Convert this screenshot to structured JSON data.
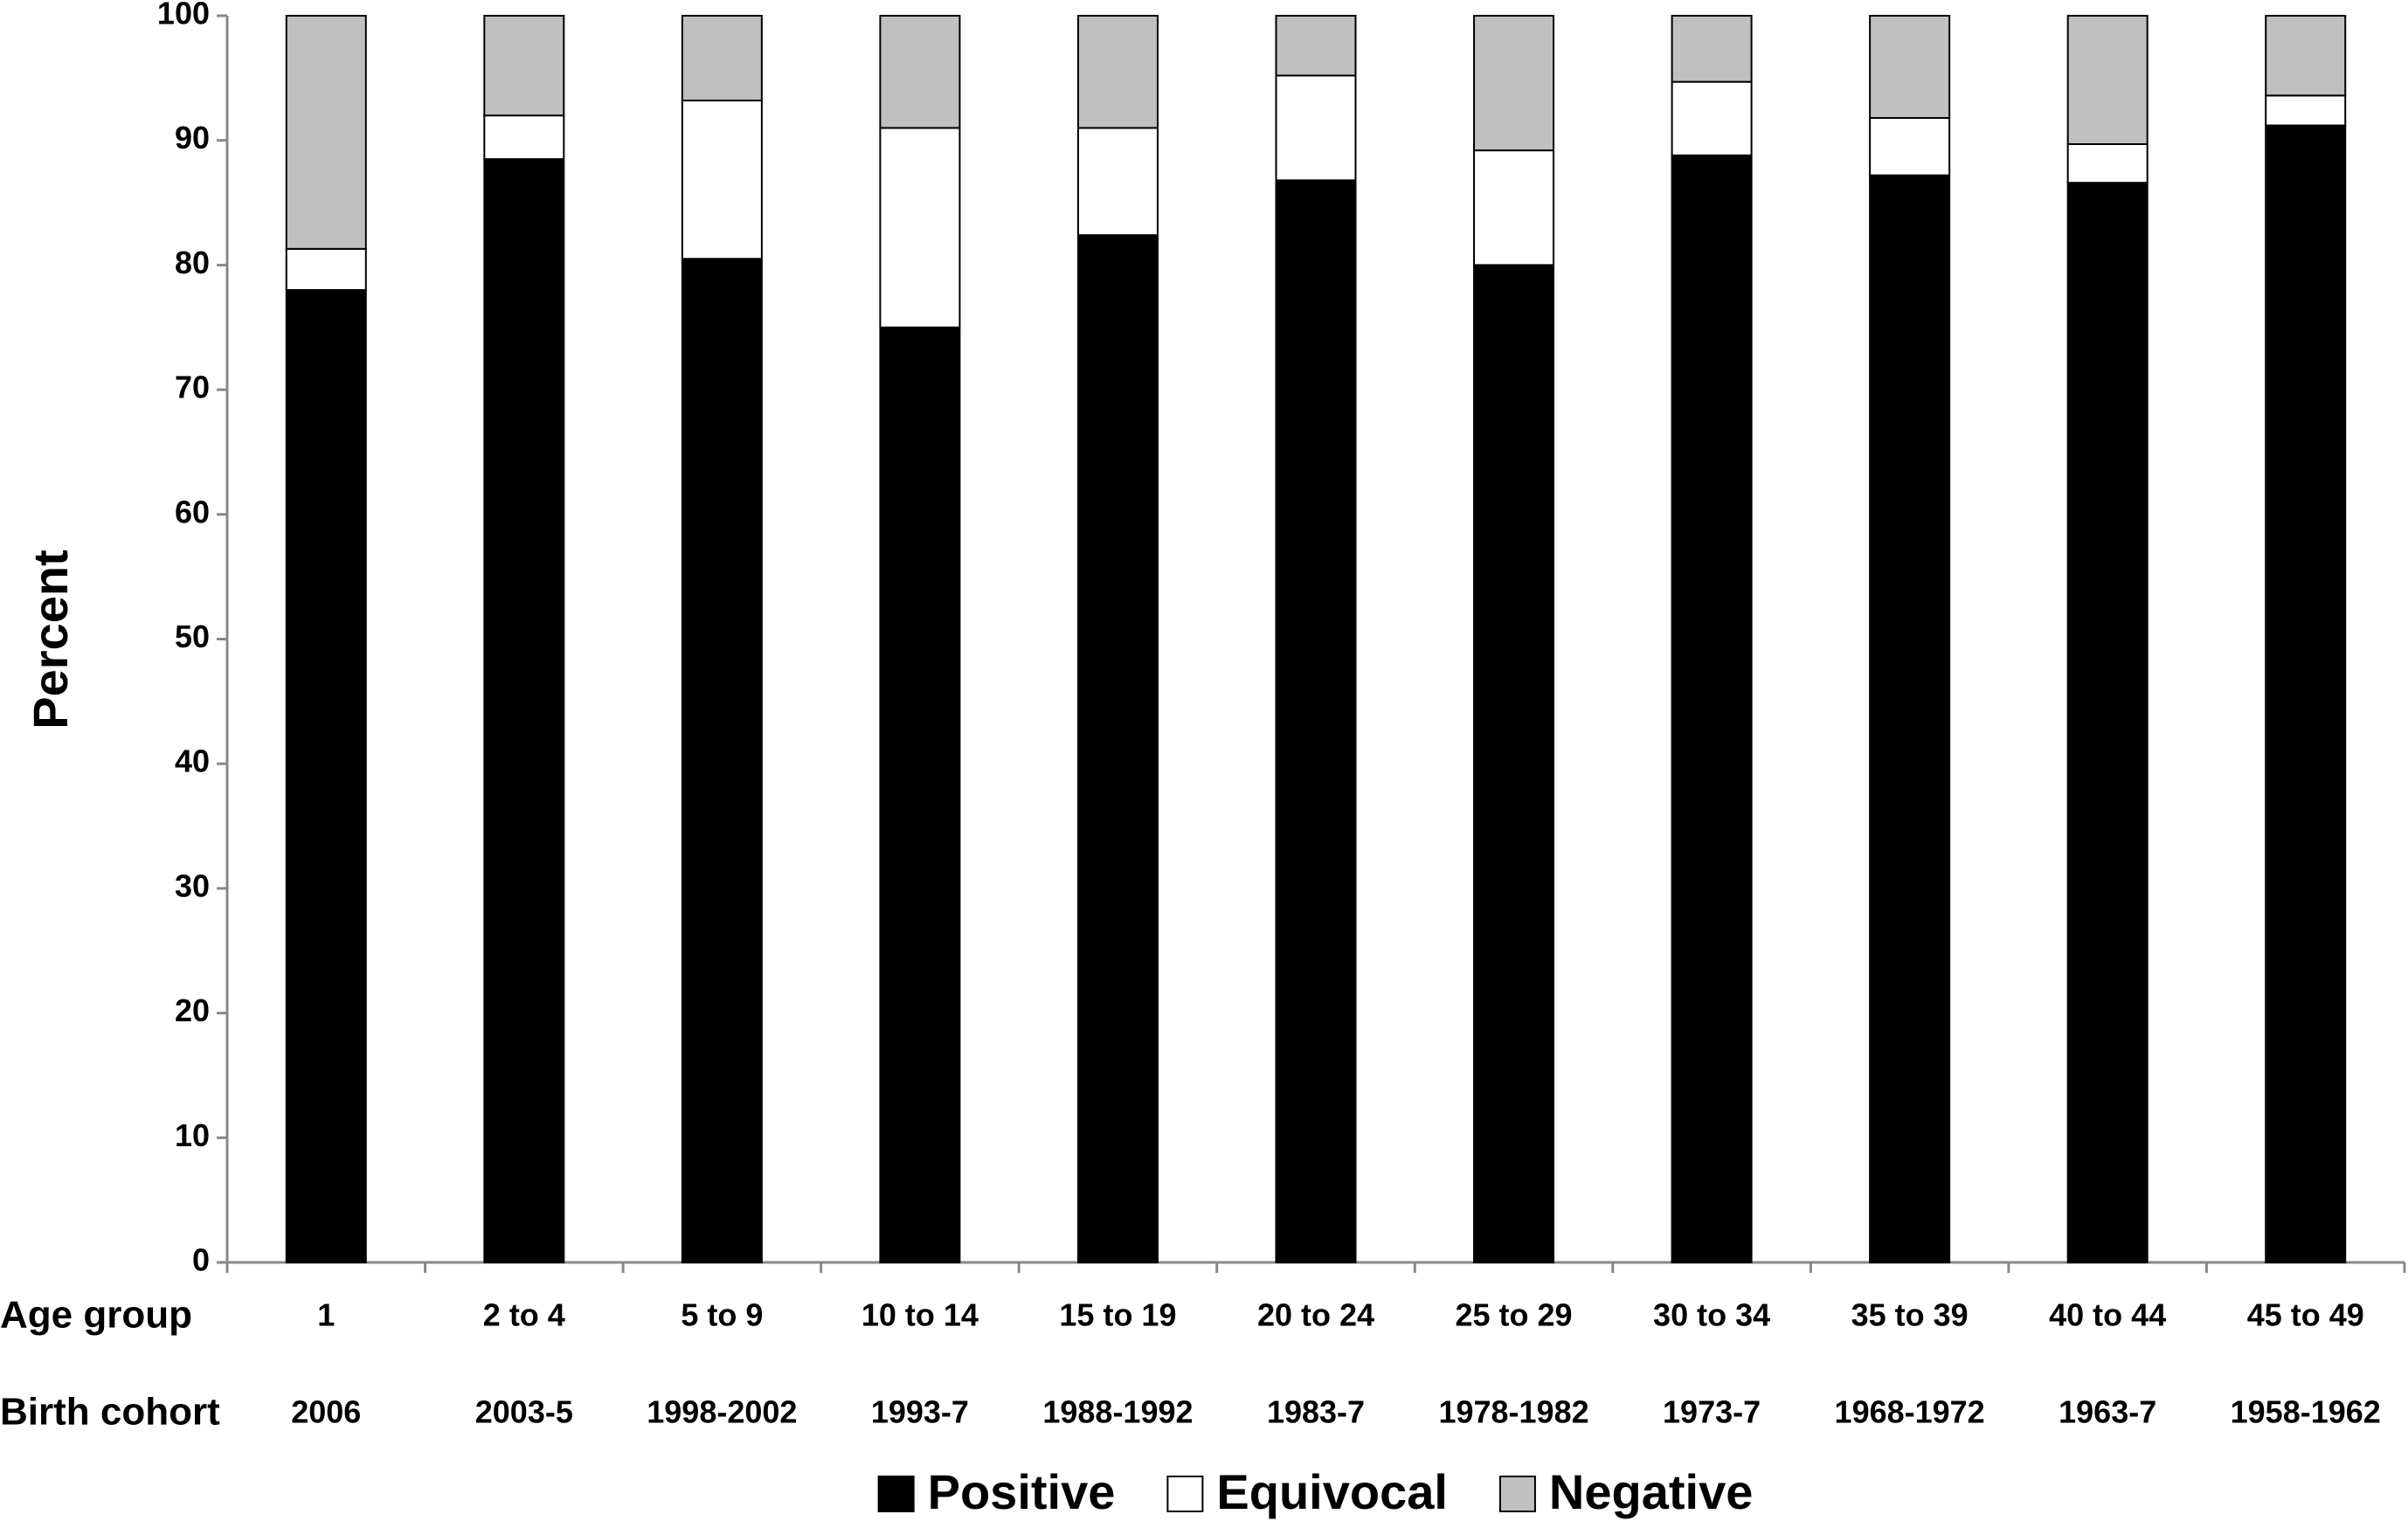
{
  "chart_data": {
    "type": "stacked_bar",
    "y_label": "Percent",
    "category_label": "Age group",
    "categories": [
      "1",
      "2 to 4",
      "5 to 9",
      "10 to 14",
      "15 to 19",
      "20 to 24",
      "25 to 29",
      "30 to 34",
      "35 to 39",
      "40 to 44",
      "45 to 49"
    ],
    "cohort_label": "Birth cohort",
    "birth_cohorts": [
      "2006",
      "2003-5",
      "1998-2002",
      "1993-7",
      "1988-1992",
      "1983-7",
      "1978-1982",
      "1973-7",
      "1968-1972",
      "1963-7",
      "1958-1962"
    ],
    "series": [
      {
        "name": "Positive",
        "color": "#000000",
        "values": [
          78,
          88.5,
          80.5,
          75,
          82.4,
          86.8,
          80,
          88.8,
          87.2,
          86.6,
          91.2
        ]
      },
      {
        "name": "Equivocal",
        "color": "#ffffff",
        "values": [
          3.3,
          3.5,
          12.7,
          16,
          8.6,
          8.4,
          9.2,
          5.9,
          4.6,
          3.1,
          2.4
        ]
      },
      {
        "name": "Negative",
        "color": "#c0c0c0",
        "values": [
          18.7,
          8,
          6.8,
          9,
          9,
          4.8,
          10.8,
          5.3,
          8.2,
          10.3,
          6.4
        ]
      }
    ],
    "ylim": [
      0,
      100
    ],
    "yticks": [
      0,
      10,
      20,
      30,
      40,
      50,
      60,
      70,
      80,
      90,
      100
    ],
    "grid": false
  }
}
